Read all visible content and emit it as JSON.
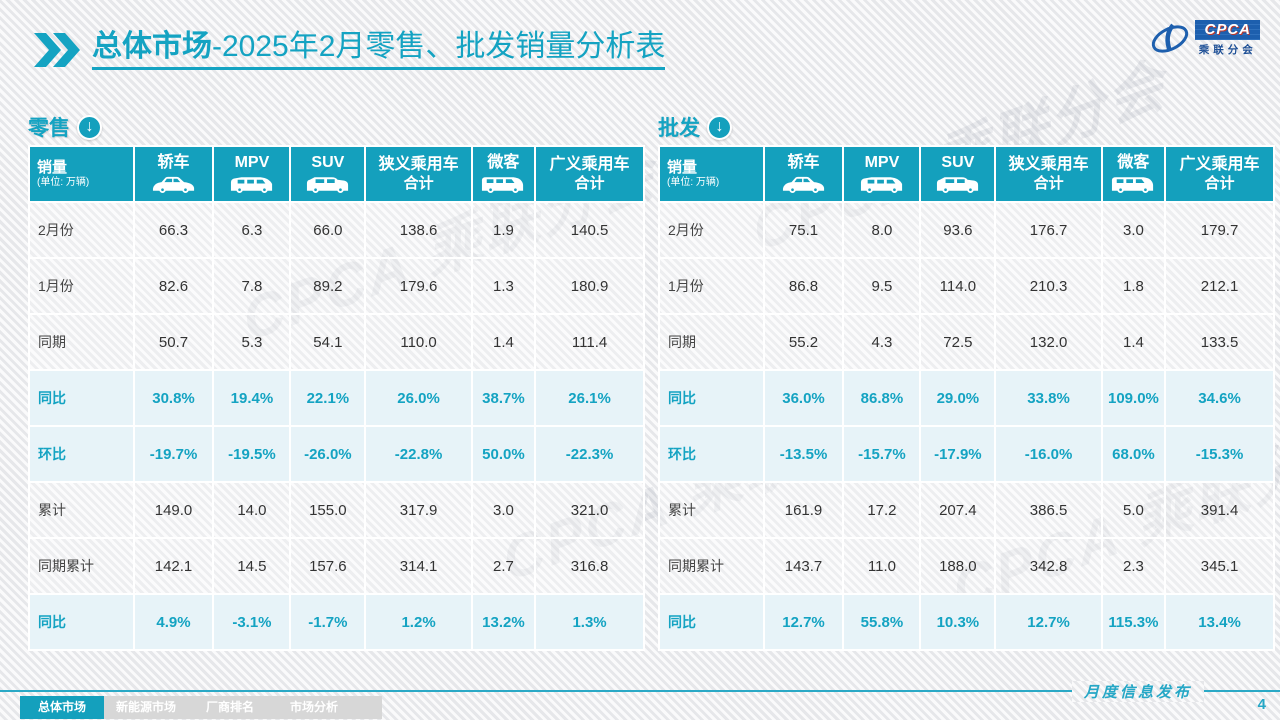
{
  "header": {
    "title_bold": "总体市场",
    "title_rest": "-2025年2月零售、批发销量分析表",
    "logo": {
      "acronym": "CPCA",
      "name": "乘联分会"
    }
  },
  "columns": [
    {
      "title": "销量",
      "sub": "(单位: 万辆)"
    },
    {
      "title": "轿车",
      "icon": "sedan-car-icon"
    },
    {
      "title": "MPV",
      "icon": "mpv-car-icon"
    },
    {
      "title": "SUV",
      "icon": "suv-car-icon"
    },
    {
      "title": "狭义乘用车",
      "line2": "合计"
    },
    {
      "title": "微客",
      "icon": "minibus-icon"
    },
    {
      "title": "广义乘用车",
      "line2": "合计"
    }
  ],
  "tables": [
    {
      "label": "零售",
      "rows": [
        {
          "label": "2月份",
          "type": "normal",
          "values": [
            "66.3",
            "6.3",
            "66.0",
            "138.6",
            "1.9",
            "140.5"
          ]
        },
        {
          "label": "1月份",
          "type": "normal",
          "values": [
            "82.6",
            "7.8",
            "89.2",
            "179.6",
            "1.3",
            "180.9"
          ]
        },
        {
          "label": "同期",
          "type": "normal",
          "values": [
            "50.7",
            "5.3",
            "54.1",
            "110.0",
            "1.4",
            "111.4"
          ]
        },
        {
          "label": "同比",
          "type": "highlight",
          "values": [
            "30.8%",
            "19.4%",
            "22.1%",
            "26.0%",
            "38.7%",
            "26.1%"
          ]
        },
        {
          "label": "环比",
          "type": "highlight",
          "values": [
            "-19.7%",
            "-19.5%",
            "-26.0%",
            "-22.8%",
            "50.0%",
            "-22.3%"
          ]
        },
        {
          "label": "累计",
          "type": "normal",
          "values": [
            "149.0",
            "14.0",
            "155.0",
            "317.9",
            "3.0",
            "321.0"
          ]
        },
        {
          "label": "同期累计",
          "type": "normal",
          "values": [
            "142.1",
            "14.5",
            "157.6",
            "314.1",
            "2.7",
            "316.8"
          ]
        },
        {
          "label": "同比",
          "type": "highlight",
          "values": [
            "4.9%",
            "-3.1%",
            "-1.7%",
            "1.2%",
            "13.2%",
            "1.3%"
          ]
        }
      ]
    },
    {
      "label": "批发",
      "rows": [
        {
          "label": "2月份",
          "type": "normal",
          "values": [
            "75.1",
            "8.0",
            "93.6",
            "176.7",
            "3.0",
            "179.7"
          ]
        },
        {
          "label": "1月份",
          "type": "normal",
          "values": [
            "86.8",
            "9.5",
            "114.0",
            "210.3",
            "1.8",
            "212.1"
          ]
        },
        {
          "label": "同期",
          "type": "normal",
          "values": [
            "55.2",
            "4.3",
            "72.5",
            "132.0",
            "1.4",
            "133.5"
          ]
        },
        {
          "label": "同比",
          "type": "highlight",
          "values": [
            "36.0%",
            "86.8%",
            "29.0%",
            "33.8%",
            "109.0%",
            "34.6%"
          ]
        },
        {
          "label": "环比",
          "type": "highlight",
          "values": [
            "-13.5%",
            "-15.7%",
            "-17.9%",
            "-16.0%",
            "68.0%",
            "-15.3%"
          ]
        },
        {
          "label": "累计",
          "type": "normal",
          "values": [
            "161.9",
            "17.2",
            "207.4",
            "386.5",
            "5.0",
            "391.4"
          ]
        },
        {
          "label": "同期累计",
          "type": "normal",
          "values": [
            "143.7",
            "11.0",
            "188.0",
            "342.8",
            "2.3",
            "345.1"
          ]
        },
        {
          "label": "同比",
          "type": "highlight",
          "values": [
            "12.7%",
            "55.8%",
            "10.3%",
            "12.7%",
            "115.3%",
            "13.4%"
          ]
        }
      ]
    }
  ],
  "watermark": "CPCA 乘联分会",
  "footer": {
    "tabs": [
      {
        "label": "总体市场",
        "active": true
      },
      {
        "label": "新能源市场",
        "active": false
      },
      {
        "label": "厂商排名",
        "active": false
      },
      {
        "label": "市场分析",
        "active": false
      }
    ],
    "publication": "月度信息发布",
    "page": "4"
  },
  "colors": {
    "teal": "#14a0bd",
    "teal_text": "#14a3c2",
    "highlight_bg": "#e7f3f8"
  }
}
